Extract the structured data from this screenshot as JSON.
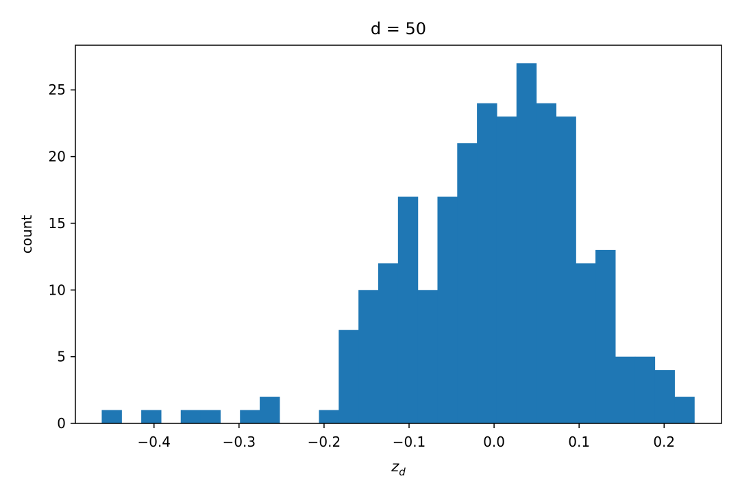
{
  "chart_data": {
    "type": "bar",
    "title": "d = 50",
    "xlabel": "z",
    "xlabel_subscript": "d",
    "ylabel": "count",
    "xlim": [
      -0.4925,
      0.2675
    ],
    "ylim": [
      0,
      28.35
    ],
    "xticks": [
      {
        "value": -0.4,
        "label": "−0.4"
      },
      {
        "value": -0.3,
        "label": "−0.3"
      },
      {
        "value": -0.2,
        "label": "−0.2"
      },
      {
        "value": -0.1,
        "label": "−0.1"
      },
      {
        "value": 0.0,
        "label": "0.0"
      },
      {
        "value": 0.1,
        "label": "0.1"
      },
      {
        "value": 0.2,
        "label": "0.2"
      }
    ],
    "yticks": [
      {
        "value": 0,
        "label": "0"
      },
      {
        "value": 5,
        "label": "5"
      },
      {
        "value": 10,
        "label": "10"
      },
      {
        "value": 15,
        "label": "15"
      },
      {
        "value": 20,
        "label": "20"
      },
      {
        "value": 25,
        "label": "25"
      }
    ],
    "bin_start": -0.4615,
    "bin_width": 0.02323,
    "counts": [
      1,
      0,
      1,
      0,
      1,
      1,
      0,
      1,
      2,
      0,
      0,
      1,
      7,
      10,
      12,
      17,
      10,
      17,
      21,
      24,
      23,
      27,
      24,
      23,
      12,
      13,
      5,
      5,
      4,
      2
    ],
    "bar_color": "#1f77b4",
    "grid": false,
    "legend": "none"
  }
}
